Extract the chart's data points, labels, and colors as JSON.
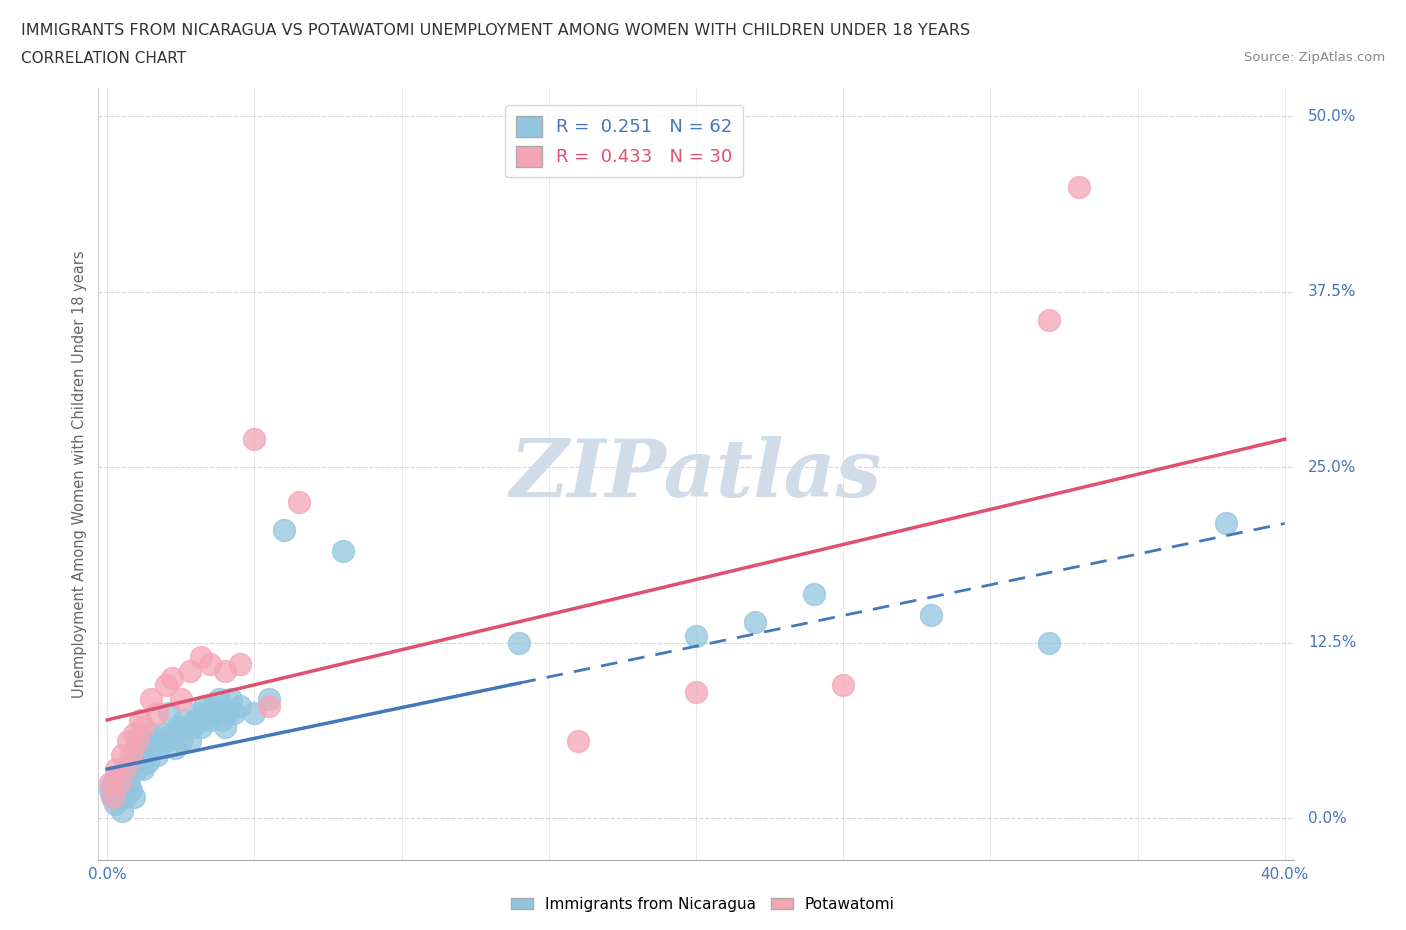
{
  "title": "IMMIGRANTS FROM NICARAGUA VS POTAWATOMI UNEMPLOYMENT AMONG WOMEN WITH CHILDREN UNDER 18 YEARS",
  "subtitle": "CORRELATION CHART",
  "source": "Source: ZipAtlas.com",
  "ylabel": "Unemployment Among Women with Children Under 18 years",
  "ytick_vals": [
    0.0,
    12.5,
    25.0,
    37.5,
    50.0
  ],
  "ytick_labels": [
    "0.0%",
    "12.5%",
    "25.0%",
    "37.5%",
    "50.0%"
  ],
  "xtick_vals": [
    0,
    5,
    10,
    15,
    20,
    25,
    30,
    35,
    40
  ],
  "xlim": [
    0.0,
    40.0
  ],
  "ylim": [
    -3.0,
    52.0
  ],
  "blue_color": "#92c5de",
  "pink_color": "#f4a5b5",
  "trend_blue_color": "#4477bb",
  "trend_pink_color": "#e05070",
  "watermark_color": "#d0dce8",
  "blue_solid_x_end": 14.0,
  "blue_trend_start_y": 3.5,
  "blue_trend_end_y": 21.0,
  "pink_trend_start_y": 7.0,
  "pink_trend_end_y": 27.0,
  "blue_x": [
    0.1,
    0.15,
    0.2,
    0.25,
    0.3,
    0.35,
    0.4,
    0.5,
    0.5,
    0.6,
    0.7,
    0.75,
    0.8,
    0.9,
    0.9,
    1.0,
    1.0,
    1.1,
    1.2,
    1.3,
    1.4,
    1.5,
    1.6,
    1.7,
    1.8,
    1.9,
    2.0,
    2.1,
    2.2,
    2.3,
    2.4,
    2.5,
    2.6,
    2.7,
    2.8,
    2.9,
    3.0,
    3.1,
    3.2,
    3.3,
    3.4,
    3.5,
    3.6,
    3.7,
    3.8,
    3.9,
    4.0,
    4.1,
    4.2,
    4.3,
    4.5,
    5.0,
    5.5,
    6.0,
    8.0,
    14.0,
    20.0,
    22.0,
    24.0,
    28.0,
    32.0,
    38.0
  ],
  "blue_y": [
    2.0,
    1.5,
    2.5,
    1.0,
    2.0,
    1.5,
    3.0,
    2.0,
    0.5,
    1.5,
    3.5,
    2.5,
    2.0,
    4.0,
    1.5,
    3.5,
    5.5,
    4.5,
    3.5,
    5.5,
    4.0,
    6.0,
    5.0,
    4.5,
    5.5,
    6.0,
    5.5,
    7.5,
    6.0,
    5.0,
    6.5,
    5.5,
    7.0,
    6.5,
    5.5,
    6.5,
    7.0,
    7.5,
    6.5,
    8.0,
    7.5,
    7.0,
    8.0,
    7.5,
    8.5,
    7.0,
    6.5,
    7.5,
    8.5,
    7.5,
    8.0,
    7.5,
    8.5,
    20.5,
    19.0,
    12.5,
    13.0,
    14.0,
    16.0,
    14.5,
    12.5,
    21.0
  ],
  "pink_x": [
    0.1,
    0.2,
    0.3,
    0.4,
    0.5,
    0.6,
    0.7,
    0.8,
    0.9,
    1.0,
    1.1,
    1.2,
    1.5,
    1.7,
    2.0,
    2.2,
    2.5,
    2.8,
    3.2,
    3.5,
    4.0,
    4.5,
    5.0,
    5.5,
    6.5,
    16.0,
    20.0,
    25.0,
    32.0,
    33.0
  ],
  "pink_y": [
    2.5,
    1.5,
    3.5,
    2.5,
    4.5,
    3.5,
    5.5,
    4.5,
    6.0,
    5.5,
    7.0,
    6.5,
    8.5,
    7.5,
    9.5,
    10.0,
    8.5,
    10.5,
    11.5,
    11.0,
    10.5,
    11.0,
    27.0,
    8.0,
    22.5,
    5.5,
    9.0,
    9.5,
    35.5,
    45.0
  ]
}
